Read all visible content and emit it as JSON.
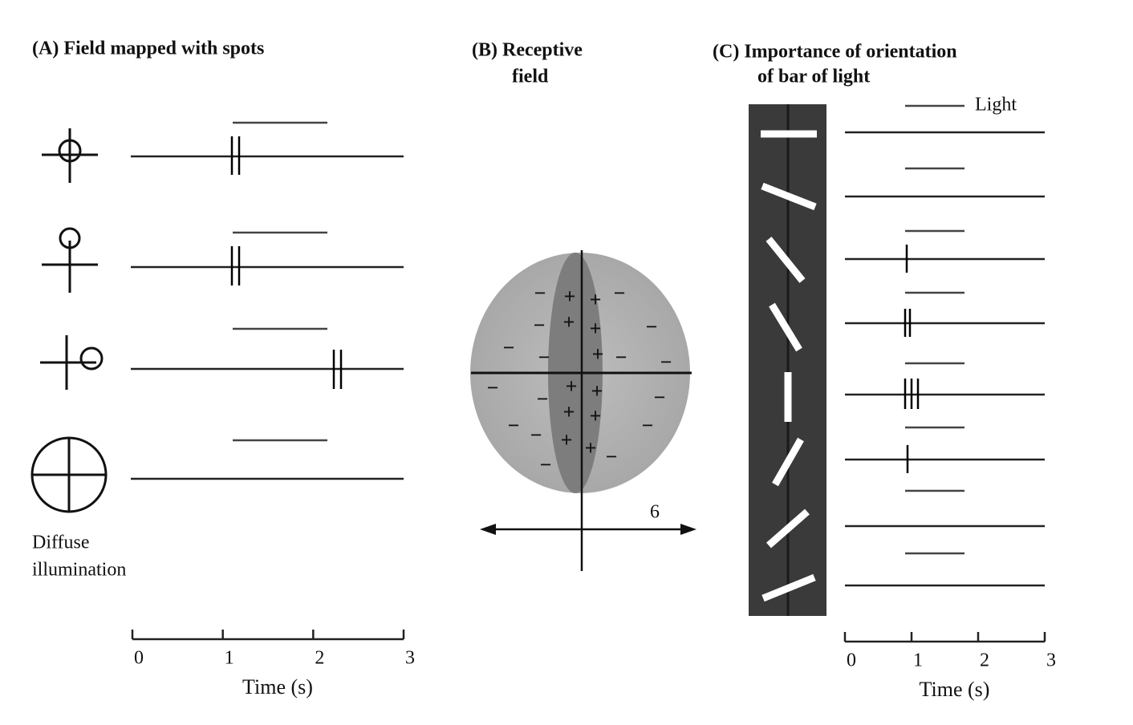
{
  "panel_a": {
    "title": "(A)  Field mapped with spots",
    "caption_line1": "Diffuse",
    "caption_line2": "illumination",
    "axis": {
      "ticks": [
        0,
        1,
        2,
        3
      ],
      "label": "Time (s)"
    }
  },
  "panel_b": {
    "title_line1": "(B)  Receptive",
    "title_line2": "field",
    "scale_label": "6"
  },
  "panel_c": {
    "title_line1": "(C)  Importance of orientation",
    "title_line2": "of bar of light",
    "legend": "Light",
    "axis": {
      "ticks": [
        0,
        1,
        2,
        3
      ],
      "label": "Time (s)"
    }
  }
}
